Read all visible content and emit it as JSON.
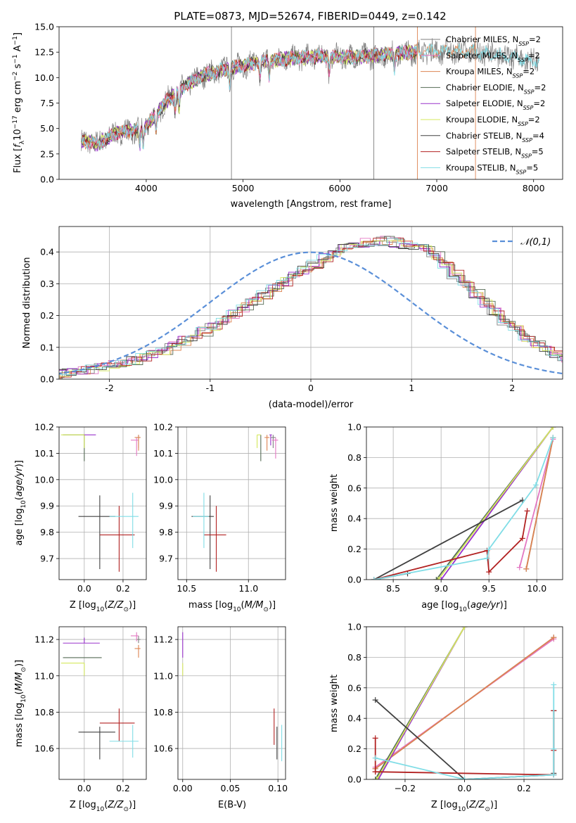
{
  "figure_title": "PLATE=0873, MJD=52674, FIBERID=0449, z=0.142",
  "colors": {
    "Chabrier MILES": "#7f7f7f",
    "Salpeter MILES": "#e377c2",
    "Kroupa MILES": "#dd8452",
    "Chabrier ELODIE": "#556b55",
    "Salpeter ELODIE": "#9932cc",
    "Kroupa ELODIE": "#d4e85c",
    "Chabrier STELIB": "#404040",
    "Salpeter STELIB": "#b22222",
    "Kroupa STELIB": "#80dde6",
    "gauss": "#5a8fd8"
  },
  "chart_data": [
    {
      "id": "spectrum",
      "type": "line",
      "title": "PLATE=0873, MJD=52674, FIBERID=0449, z=0.142",
      "xlabel": "wavelength [Angstrom, rest frame]",
      "ylabel": "Flux [f_λ 10^-17 erg cm^-2 s^-1 A^-1]",
      "xlim": [
        3100,
        8300
      ],
      "ylim": [
        0,
        15
      ],
      "xticks": [
        4000,
        5000,
        6000,
        7000,
        8000
      ],
      "yticks": [
        0.0,
        2.5,
        5.0,
        7.5,
        10.0,
        12.5,
        15.0
      ],
      "grid": false,
      "legend_position": "upper right",
      "series": [
        {
          "name": "Chabrier MILES",
          "nssp": "2",
          "color": "#7f7f7f",
          "x_range": [
            3330,
            8060
          ]
        },
        {
          "name": "Salpeter MILES",
          "nssp": "2",
          "color": "#e377c2",
          "x_range": [
            3330,
            6800
          ]
        },
        {
          "name": "Kroupa MILES",
          "nssp": "2",
          "color": "#dd8452",
          "x_range": [
            3330,
            7400
          ]
        },
        {
          "name": "Chabrier ELODIE",
          "nssp": "2",
          "color": "#556b55",
          "x_range": [
            3330,
            6800
          ]
        },
        {
          "name": "Salpeter ELODIE",
          "nssp": "2",
          "color": "#9932cc",
          "x_range": [
            3330,
            6800
          ]
        },
        {
          "name": "Kroupa ELODIE",
          "nssp": "2",
          "color": "#d4e85c",
          "x_range": [
            3330,
            6800
          ]
        },
        {
          "name": "Chabrier STELIB",
          "nssp": "4",
          "color": "#404040",
          "x_range": [
            3330,
            6800
          ]
        },
        {
          "name": "Salpeter STELIB",
          "nssp": "5",
          "color": "#b22222",
          "x_range": [
            3330,
            6800
          ]
        },
        {
          "name": "Kroupa STELIB",
          "nssp": "5",
          "color": "#80dde6",
          "x_range": [
            3330,
            8060
          ]
        }
      ],
      "continuum": {
        "x": [
          3330,
          3500,
          3700,
          3900,
          4000,
          4200,
          4400,
          4600,
          4800,
          5000,
          5200,
          5500,
          5800,
          6000,
          6300,
          6600,
          7000,
          7400,
          7800,
          8060
        ],
        "y": [
          3.8,
          3.5,
          4.6,
          4.8,
          5.2,
          7.6,
          9.2,
          10.3,
          10.8,
          11.2,
          11.6,
          11.9,
          12.1,
          12.0,
          12.1,
          12.4,
          12.6,
          12.5,
          12.0,
          11.5
        ]
      },
      "vlines": [
        {
          "x": 4880,
          "color": "#7f7f7f"
        },
        {
          "x": 6350,
          "color": "#7f7f7f"
        },
        {
          "x": 6800,
          "color": "#dd8452"
        },
        {
          "x": 7400,
          "color": "#dd8452"
        }
      ]
    },
    {
      "id": "residuals",
      "type": "histogram",
      "xlabel": "(data-model)/error",
      "ylabel": "Normed distribution",
      "xlim": [
        -2.5,
        2.5
      ],
      "ylim": [
        0,
        0.48
      ],
      "xticks": [
        -2,
        -1,
        0,
        1,
        2
      ],
      "yticks": [
        0.0,
        0.1,
        0.2,
        0.3,
        0.4
      ],
      "grid": true,
      "legend": [
        {
          "name": "𝒩(0,1)",
          "style": "dashed",
          "color": "#5a8fd8"
        }
      ],
      "legend_position": "upper right",
      "gaussian": {
        "mu": 0,
        "sigma": 1
      },
      "bin_width": 0.1,
      "base_heights": [
        0.02,
        0.025,
        0.028,
        0.032,
        0.038,
        0.045,
        0.052,
        0.06,
        0.07,
        0.08,
        0.092,
        0.105,
        0.12,
        0.135,
        0.15,
        0.165,
        0.185,
        0.205,
        0.225,
        0.245,
        0.265,
        0.285,
        0.305,
        0.325,
        0.345,
        0.36,
        0.38,
        0.395,
        0.41,
        0.42,
        0.43,
        0.435,
        0.435,
        0.43,
        0.425,
        0.42,
        0.41,
        0.39,
        0.36,
        0.33,
        0.3,
        0.27,
        0.24,
        0.21,
        0.18,
        0.155,
        0.13,
        0.11,
        0.09,
        0.075,
        0.06,
        0.045,
        0.035,
        0.027,
        0.022
      ]
    },
    {
      "id": "age_vs_Z",
      "type": "errorbar",
      "xlabel": "Z [log10(Z/Z⊙)]",
      "ylabel": "age [log10(age/yr)]",
      "xlim": [
        -0.13,
        0.32
      ],
      "ylim": [
        9.62,
        10.2
      ],
      "xticks": [
        0.0,
        0.2
      ],
      "xticklabels": [
        "0.0",
        "0.2"
      ],
      "yticks": [
        9.7,
        9.8,
        9.9,
        10.0,
        10.1,
        10.2
      ],
      "grid": true,
      "points": [
        {
          "model": "Chabrier ELODIE",
          "x": 0.0,
          "y": 10.17,
          "xerr": [
            0.11,
            0.0
          ],
          "yerr": [
            0.1,
            0.0
          ]
        },
        {
          "model": "Kroupa ELODIE",
          "x": 0.0,
          "y": 10.17,
          "xerr": [
            0.12,
            0.0
          ],
          "yerr": [
            0.05,
            0.0
          ]
        },
        {
          "model": "Salpeter ELODIE",
          "x": 0.0,
          "y": 10.17,
          "xerr": [
            0.0,
            0.06
          ],
          "yerr": [
            0.0,
            0.0
          ]
        },
        {
          "model": "Chabrier MILES",
          "x": 0.28,
          "y": 10.16,
          "xerr": [
            0.01,
            0.01
          ],
          "yerr": [
            0.04,
            0.01
          ]
        },
        {
          "model": "Salpeter MILES",
          "x": 0.27,
          "y": 10.15,
          "xerr": [
            0.03,
            0.01
          ],
          "yerr": [
            0.06,
            0.01
          ]
        },
        {
          "model": "Kroupa MILES",
          "x": 0.28,
          "y": 10.16,
          "xerr": [
            0.02,
            0.01
          ],
          "yerr": [
            0.05,
            0.01
          ]
        },
        {
          "model": "Chabrier STELIB",
          "x": 0.08,
          "y": 9.86,
          "xerr": [
            0.11,
            0.08
          ],
          "yerr": [
            0.2,
            0.08
          ]
        },
        {
          "model": "Salpeter STELIB",
          "x": 0.18,
          "y": 9.79,
          "xerr": [
            0.1,
            0.08
          ],
          "yerr": [
            0.14,
            0.11
          ]
        },
        {
          "model": "Kroupa STELIB",
          "x": 0.25,
          "y": 9.86,
          "xerr": [
            0.12,
            0.03
          ],
          "yerr": [
            0.12,
            0.09
          ]
        }
      ]
    },
    {
      "id": "age_vs_mass",
      "type": "errorbar",
      "xlabel": "mass [log10(M/M⊙)]",
      "ylabel": "",
      "xlim": [
        10.43,
        11.3
      ],
      "ylim": [
        9.62,
        10.2
      ],
      "xticks": [
        10.5,
        11.0
      ],
      "xticklabels": [
        "10.5",
        "11.0"
      ],
      "yticks": [
        9.7,
        9.8,
        9.9,
        10.0,
        10.1,
        10.2
      ],
      "grid": true,
      "points": [
        {
          "model": "Chabrier ELODIE",
          "x": 11.1,
          "y": 10.17,
          "xerr": [
            0.0,
            0.0
          ],
          "yerr": [
            0.1,
            0.0
          ]
        },
        {
          "model": "Kroupa ELODIE",
          "x": 11.07,
          "y": 10.17,
          "xerr": [
            0.0,
            0.03
          ],
          "yerr": [
            0.05,
            0.0
          ]
        },
        {
          "model": "Salpeter ELODIE",
          "x": 11.18,
          "y": 10.17,
          "xerr": [
            0.01,
            0.01
          ],
          "yerr": [
            0.04,
            0.0
          ]
        },
        {
          "model": "Chabrier MILES",
          "x": 11.2,
          "y": 10.16,
          "xerr": [
            0.02,
            0.02
          ],
          "yerr": [
            0.04,
            0.01
          ]
        },
        {
          "model": "Salpeter MILES",
          "x": 11.22,
          "y": 10.15,
          "xerr": [
            0.03,
            0.02
          ],
          "yerr": [
            0.07,
            0.01
          ]
        },
        {
          "model": "Kroupa MILES",
          "x": 11.15,
          "y": 10.16,
          "xerr": [
            0.02,
            0.02
          ],
          "yerr": [
            0.05,
            0.01
          ]
        },
        {
          "model": "Chabrier STELIB",
          "x": 10.69,
          "y": 9.86,
          "xerr": [
            0.15,
            0.03
          ],
          "yerr": [
            0.2,
            0.08
          ]
        },
        {
          "model": "Salpeter STELIB",
          "x": 10.74,
          "y": 9.79,
          "xerr": [
            0.1,
            0.08
          ],
          "yerr": [
            0.14,
            0.11
          ]
        },
        {
          "model": "Kroupa STELIB",
          "x": 10.64,
          "y": 9.86,
          "xerr": [
            0.09,
            0.04
          ],
          "yerr": [
            0.12,
            0.09
          ]
        }
      ]
    },
    {
      "id": "weight_vs_age",
      "type": "line",
      "xlabel": "age [log10(age/yr)]",
      "ylabel": "mass weight",
      "xlim": [
        8.22,
        10.27
      ],
      "ylim": [
        0,
        1
      ],
      "xticks": [
        8.5,
        9.0,
        9.5,
        10.0
      ],
      "xticklabels": [
        "8.5",
        "9.0",
        "9.5",
        "10.0"
      ],
      "yticks": [
        0.0,
        0.2,
        0.4,
        0.6,
        0.8,
        1.0
      ],
      "grid": true,
      "series": [
        {
          "name": "Chabrier MILES",
          "x": [
            10.17,
            9.89
          ],
          "y": [
            0.93,
            0.07
          ]
        },
        {
          "name": "Salpeter MILES",
          "x": [
            10.17,
            9.82
          ],
          "y": [
            0.92,
            0.08
          ]
        },
        {
          "name": "Kroupa MILES",
          "x": [
            10.17,
            9.89
          ],
          "y": [
            0.93,
            0.07
          ]
        },
        {
          "name": "Chabrier ELODIE",
          "x": [
            10.17,
            8.95
          ],
          "y": [
            1.0,
            0.0
          ]
        },
        {
          "name": "Salpeter ELODIE",
          "x": [
            10.17,
            9.0
          ],
          "y": [
            1.0,
            0.0
          ]
        },
        {
          "name": "Kroupa ELODIE",
          "x": [
            10.17,
            8.97
          ],
          "y": [
            1.0,
            0.0
          ]
        },
        {
          "name": "Chabrier STELIB",
          "x": [
            8.65,
            8.3,
            9.85
          ],
          "y": [
            0.04,
            0.0,
            0.52
          ]
        },
        {
          "name": "Salpeter STELIB",
          "x": [
            8.3,
            9.48,
            9.5,
            9.85,
            9.9
          ],
          "y": [
            0.0,
            0.19,
            0.05,
            0.27,
            0.45
          ]
        },
        {
          "name": "Kroupa STELIB",
          "x": [
            8.3,
            9.48,
            9.5,
            9.99,
            10.17
          ],
          "y": [
            0.0,
            0.14,
            0.2,
            0.62,
            0.93
          ]
        }
      ]
    },
    {
      "id": "mass_vs_Z",
      "type": "errorbar",
      "xlabel": "Z [log10(Z/Z⊙)]",
      "ylabel": "mass [log10(M/M⊙)]",
      "xlim": [
        -0.13,
        0.32
      ],
      "ylim": [
        10.43,
        11.27
      ],
      "xticks": [
        0.0,
        0.2
      ],
      "xticklabels": [
        "0.0",
        "0.2"
      ],
      "yticks": [
        10.6,
        10.8,
        11.0,
        11.2
      ],
      "grid": true,
      "points": [
        {
          "model": "Chabrier ELODIE",
          "x": 0.0,
          "y": 11.1,
          "xerr": [
            0.11,
            0.09
          ],
          "yerr": [
            0.0,
            0.0
          ]
        },
        {
          "model": "Kroupa ELODIE",
          "x": 0.0,
          "y": 11.07,
          "xerr": [
            0.12,
            0.0
          ],
          "yerr": [
            0.07,
            0.0
          ]
        },
        {
          "model": "Salpeter ELODIE",
          "x": 0.0,
          "y": 11.18,
          "xerr": [
            0.11,
            0.08
          ],
          "yerr": [
            0.0,
            0.03
          ]
        },
        {
          "model": "Chabrier MILES",
          "x": 0.28,
          "y": 11.2,
          "xerr": [
            0.01,
            0.01
          ],
          "yerr": [
            0.02,
            0.02
          ]
        },
        {
          "model": "Salpeter MILES",
          "x": 0.27,
          "y": 11.22,
          "xerr": [
            0.03,
            0.01
          ],
          "yerr": [
            0.03,
            0.02
          ]
        },
        {
          "model": "Kroupa MILES",
          "x": 0.28,
          "y": 11.15,
          "xerr": [
            0.02,
            0.01
          ],
          "yerr": [
            0.05,
            0.02
          ]
        },
        {
          "model": "Chabrier STELIB",
          "x": 0.08,
          "y": 10.69,
          "xerr": [
            0.11,
            0.08
          ],
          "yerr": [
            0.15,
            0.03
          ]
        },
        {
          "model": "Salpeter STELIB",
          "x": 0.18,
          "y": 10.74,
          "xerr": [
            0.1,
            0.08
          ],
          "yerr": [
            0.1,
            0.08
          ]
        },
        {
          "model": "Kroupa STELIB",
          "x": 0.25,
          "y": 10.64,
          "xerr": [
            0.12,
            0.03
          ],
          "yerr": [
            0.09,
            0.09
          ]
        }
      ]
    },
    {
      "id": "mass_vs_EBV",
      "type": "errorbar",
      "xlabel": "E(B-V)",
      "ylabel": "",
      "xlim": [
        -0.005,
        0.108
      ],
      "ylim": [
        10.43,
        11.27
      ],
      "xticks": [
        0.0,
        0.05,
        0.1
      ],
      "xticklabels": [
        "0.00",
        "0.05",
        "0.10"
      ],
      "yticks": [
        10.6,
        10.8,
        11.0,
        11.2
      ],
      "grid": true,
      "points": [
        {
          "model": "Chabrier ELODIE",
          "x": 0.0,
          "y": 11.1,
          "xerr": [
            0,
            0
          ],
          "yerr": [
            0.0,
            0.0
          ]
        },
        {
          "model": "Kroupa ELODIE",
          "x": 0.0,
          "y": 11.07,
          "xerr": [
            0,
            0
          ],
          "yerr": [
            0.07,
            0.0
          ]
        },
        {
          "model": "Salpeter ELODIE",
          "x": 0.0,
          "y": 11.18,
          "xerr": [
            0,
            0
          ],
          "yerr": [
            0.08,
            0.06
          ]
        },
        {
          "model": "Chabrier STELIB",
          "x": 0.099,
          "y": 10.69,
          "xerr": [
            0,
            0
          ],
          "yerr": [
            0.15,
            0.03
          ]
        },
        {
          "model": "Salpeter STELIB",
          "x": 0.096,
          "y": 10.74,
          "xerr": [
            0,
            0
          ],
          "yerr": [
            0.12,
            0.08
          ]
        },
        {
          "model": "Kroupa STELIB",
          "x": 0.104,
          "y": 10.64,
          "xerr": [
            0,
            0
          ],
          "yerr": [
            0.11,
            0.09
          ]
        }
      ]
    },
    {
      "id": "weight_vs_Z",
      "type": "line",
      "xlabel": "Z [log10(Z/Z⊙)]",
      "ylabel": "mass weight",
      "xlim": [
        -0.33,
        0.33
      ],
      "ylim": [
        0,
        1
      ],
      "xticks": [
        -0.2,
        0.0,
        0.2
      ],
      "xticklabels": [
        "−0.2",
        "0.0",
        "0.2"
      ],
      "yticks": [
        0.0,
        0.2,
        0.4,
        0.6,
        0.8,
        1.0
      ],
      "grid": true,
      "series": [
        {
          "name": "Chabrier MILES",
          "x": [
            -0.3,
            0.3
          ],
          "y": [
            0.07,
            0.93
          ]
        },
        {
          "name": "Salpeter MILES",
          "x": [
            -0.3,
            0.3
          ],
          "y": [
            0.08,
            0.92
          ]
        },
        {
          "name": "Kroupa MILES",
          "x": [
            -0.3,
            0.3
          ],
          "y": [
            0.07,
            0.93
          ]
        },
        {
          "name": "Chabrier ELODIE",
          "x": [
            -0.3,
            0.0
          ],
          "y": [
            0.0,
            1.0
          ]
        },
        {
          "name": "Salpeter ELODIE",
          "x": [
            -0.29,
            0.0
          ],
          "y": [
            0.0,
            1.0
          ]
        },
        {
          "name": "Kroupa ELODIE",
          "x": [
            -0.295,
            0.0
          ],
          "y": [
            0.0,
            1.0
          ]
        },
        {
          "name": "Chabrier STELIB",
          "x": [
            -0.3,
            0.0,
            0.3,
            0.3,
            0.3
          ],
          "y": [
            0.52,
            0.0,
            0.03,
            0.45,
            0.04
          ]
        },
        {
          "name": "Salpeter STELIB",
          "x": [
            -0.3,
            -0.3,
            -0.3,
            0.3,
            0.3,
            0.3
          ],
          "y": [
            0.27,
            0.05,
            0.05,
            0.03,
            0.19,
            0.45
          ]
        },
        {
          "name": "Kroupa STELIB",
          "x": [
            -0.3,
            0.0,
            0.3,
            0.3,
            0.3
          ],
          "y": [
            0.14,
            0.0,
            0.03,
            0.62,
            0.2
          ]
        }
      ]
    }
  ]
}
